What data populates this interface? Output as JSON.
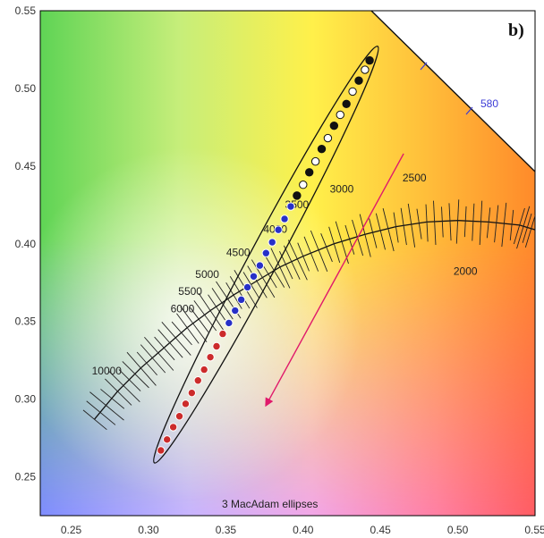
{
  "chart_data": {
    "type": "scatter",
    "title": "",
    "panel_label": "b)",
    "caption": "3  MacAdam ellipses",
    "xlabel": "",
    "ylabel": "",
    "xlim": [
      0.23,
      0.55
    ],
    "ylim": [
      0.225,
      0.55
    ],
    "x_ticks": [
      "0.25",
      "0.30",
      "0.35",
      "0.40",
      "0.45",
      "0.50",
      "0.55"
    ],
    "y_ticks": [
      "0.25",
      "0.30",
      "0.35",
      "0.40",
      "0.45",
      "0.50",
      "0.55"
    ],
    "spectral_locus_label": "580",
    "planckian_locus": {
      "x": [
        0.265,
        0.28,
        0.295,
        0.31,
        0.325,
        0.34,
        0.355,
        0.37,
        0.385,
        0.4,
        0.42,
        0.44,
        0.46,
        0.48,
        0.5,
        0.52,
        0.54,
        0.55
      ],
      "y": [
        0.287,
        0.305,
        0.32,
        0.333,
        0.346,
        0.357,
        0.367,
        0.376,
        0.385,
        0.392,
        0.4,
        0.406,
        0.411,
        0.414,
        0.415,
        0.414,
        0.412,
        0.409
      ]
    },
    "cct_labels": [
      {
        "text": "10000",
        "x": 0.273,
        "y": 0.316
      },
      {
        "text": "6000",
        "x": 0.322,
        "y": 0.356
      },
      {
        "text": "5500",
        "x": 0.327,
        "y": 0.367
      },
      {
        "text": "5000",
        "x": 0.338,
        "y": 0.378
      },
      {
        "text": "4500",
        "x": 0.358,
        "y": 0.392
      },
      {
        "text": "4000",
        "x": 0.382,
        "y": 0.407
      },
      {
        "text": "3500",
        "x": 0.396,
        "y": 0.423
      },
      {
        "text": "3000",
        "x": 0.425,
        "y": 0.433
      },
      {
        "text": "2500",
        "x": 0.472,
        "y": 0.44
      },
      {
        "text": "2000",
        "x": 0.505,
        "y": 0.38
      }
    ],
    "macadam_ellipse": {
      "center": [
        0.376,
        0.393
      ],
      "p1": [
        0.306,
        0.263
      ],
      "p2": [
        0.446,
        0.523
      ],
      "semi_minor": 0.006
    },
    "series": [
      {
        "name": "",
        "color": "#cc2b2b",
        "x": [
          0.308,
          0.312,
          0.316,
          0.32,
          0.324,
          0.328,
          0.332,
          0.336,
          0.34,
          0.344,
          0.348
        ],
        "y": [
          0.267,
          0.274,
          0.282,
          0.289,
          0.297,
          0.304,
          0.312,
          0.319,
          0.327,
          0.334,
          0.342
        ]
      },
      {
        "name": "",
        "color": "#2730c8",
        "x": [
          0.352,
          0.356,
          0.36,
          0.364,
          0.368,
          0.372,
          0.376,
          0.38,
          0.384,
          0.388,
          0.392
        ],
        "y": [
          0.349,
          0.357,
          0.364,
          0.372,
          0.379,
          0.386,
          0.394,
          0.401,
          0.409,
          0.416,
          0.424
        ]
      },
      {
        "name": "",
        "color": "#111111",
        "x": [
          0.396,
          0.4,
          0.404,
          0.408,
          0.412,
          0.416,
          0.42,
          0.424,
          0.428,
          0.432,
          0.436,
          0.44,
          0.443
        ],
        "y": [
          0.431,
          0.438,
          0.446,
          0.453,
          0.461,
          0.468,
          0.476,
          0.483,
          0.49,
          0.498,
          0.505,
          0.512,
          0.518
        ]
      }
    ],
    "arrow": {
      "from": [
        0.465,
        0.458
      ],
      "to": [
        0.376,
        0.296
      ],
      "color": "#e0196b"
    },
    "colors": {
      "frame": "#000000",
      "locus": "#111111",
      "arrow": "#e0196b"
    }
  }
}
